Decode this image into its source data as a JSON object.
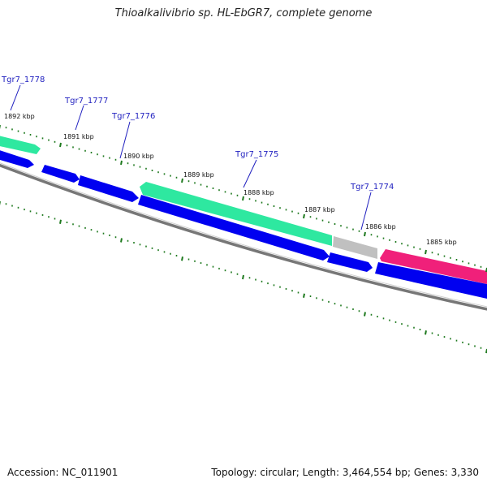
{
  "title": "Thioalkalivibrio sp. HL-EbGR7, complete genome",
  "footer": {
    "accession": "Accession: NC_011901",
    "summary": "Topology: circular; Length: 3,464,554 bp; Genes: 3,330"
  },
  "colors": {
    "forward_gene": "#2ee8a0",
    "reverse_gene": "#0000f0",
    "other_gene": "#c0c0c0",
    "rna_gene": "#f0207a",
    "backbone": "#777777",
    "tick": "#1f7a1f",
    "gene_label": "#1f1fbf"
  },
  "gene_labels": [
    "Tgr7_1778",
    "Tgr7_1777",
    "Tgr7_1776",
    "Tgr7_1775",
    "Tgr7_1774"
  ],
  "kbp_labels": [
    "1892 kbp",
    "1891 kbp",
    "1890 kbp",
    "1889 kbp",
    "1888 kbp",
    "1887 kbp",
    "1886 kbp",
    "1885 kbp"
  ]
}
